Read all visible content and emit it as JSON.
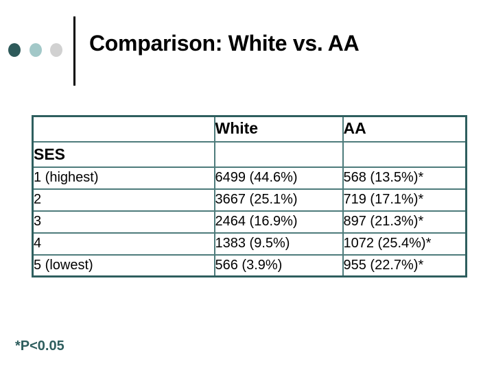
{
  "slide_title": "Comparison: White vs. AA",
  "decoration": {
    "bullet_circles": [
      {
        "name": "dark-teal-bullet",
        "color": "#2E5A5A"
      },
      {
        "name": "light-teal-bullet",
        "color": "#A2C8C8"
      },
      {
        "name": "gray-bullet",
        "color": "#D1D1D1"
      }
    ]
  },
  "colors": {
    "table_border": "#2E5E5E",
    "table_grid": "#4D7B7B",
    "footnote": "#2E5E5E",
    "title": "#000000"
  },
  "table": {
    "header": {
      "label_col": "",
      "white": "White",
      "aa": "AA"
    },
    "section_label": "SES",
    "rows": [
      {
        "label": "1 (highest)",
        "white": "6499 (44.6%)",
        "aa": "568 (13.5%)*"
      },
      {
        "label": "2",
        "white": "3667 (25.1%)",
        "aa": "719 (17.1%)*"
      },
      {
        "label": "3",
        "white": "2464 (16.9%)",
        "aa": "897 (21.3%)*"
      },
      {
        "label": "4",
        "white": "1383 (9.5%)",
        "aa": "1072 (25.4%)*"
      },
      {
        "label": "5 (lowest)",
        "white": "566 (3.9%)",
        "aa": "955 (22.7%)*"
      }
    ]
  },
  "footnote": "*P<0.05"
}
